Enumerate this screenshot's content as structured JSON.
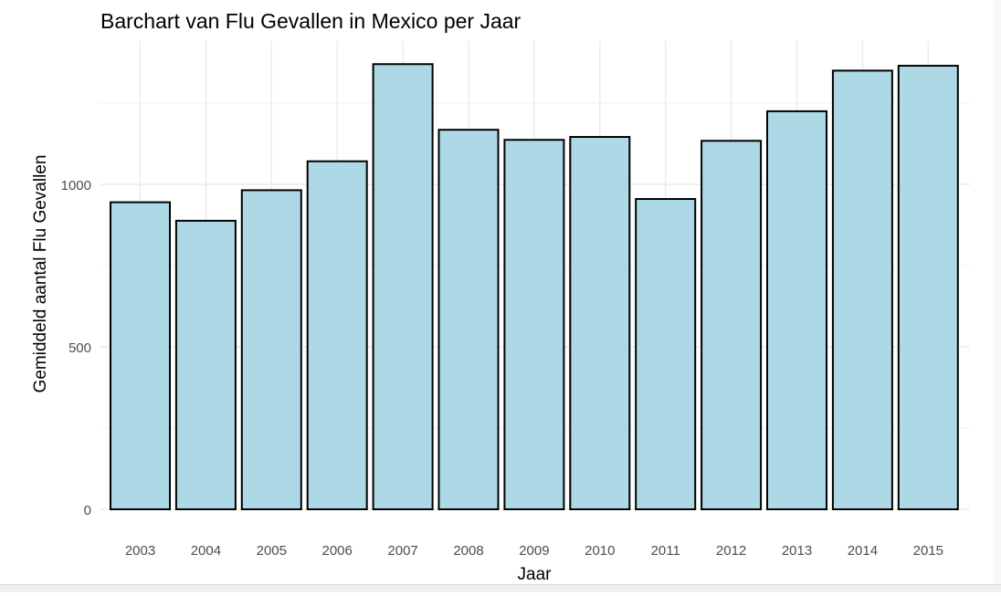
{
  "chart_data": {
    "type": "bar",
    "title": "Barchart van Flu Gevallen in Mexico per Jaar",
    "xlabel": "Jaar",
    "ylabel": "Gemiddeld aantal Flu Gevallen",
    "categories": [
      "2003",
      "2004",
      "2005",
      "2006",
      "2007",
      "2008",
      "2009",
      "2010",
      "2011",
      "2012",
      "2013",
      "2014",
      "2015"
    ],
    "values": [
      945,
      888,
      982,
      1071,
      1370,
      1168,
      1137,
      1146,
      955,
      1134,
      1225,
      1350,
      1365
    ],
    "yticks": [
      0,
      500,
      1000
    ],
    "ylim": [
      0,
      1460
    ],
    "grid": true,
    "bar_fill": "#add8e6",
    "bar_stroke": "#000000",
    "grid_color": "#ebebeb"
  }
}
